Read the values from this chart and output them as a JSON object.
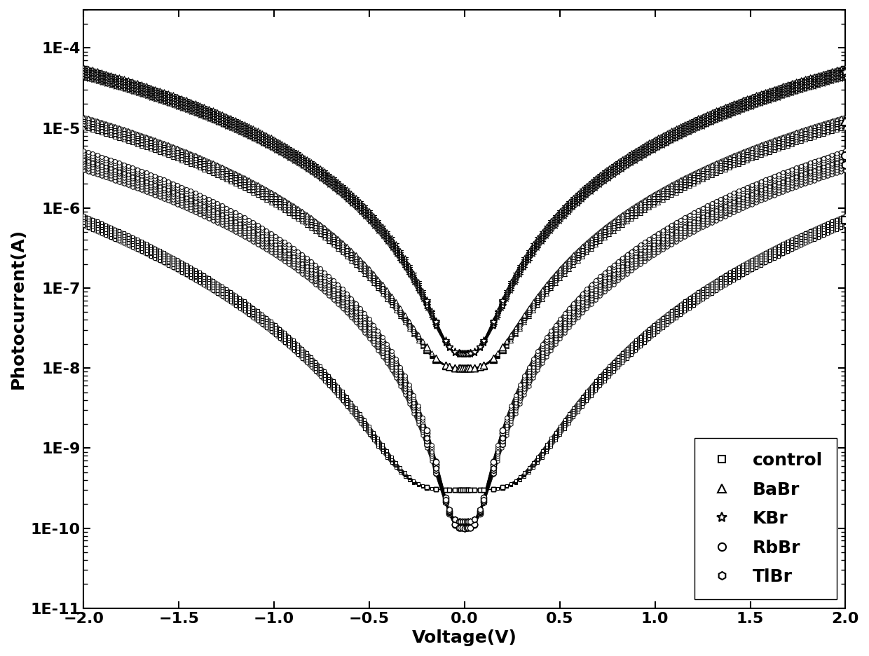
{
  "xlabel": "Voltage(V)",
  "ylabel": "Photocurrent(A)",
  "xlim": [
    -2.0,
    2.0
  ],
  "ylim": [
    1e-11,
    0.0003
  ],
  "background_color": "#ffffff",
  "series": [
    {
      "name": "control",
      "marker": "s",
      "markersize": 5,
      "I_at_2V": 7e-07,
      "I_floor": 3e-10,
      "n": 4.5
    },
    {
      "name": "BaBr",
      "marker": "^",
      "markersize": 7,
      "I_at_2V": 1.2e-05,
      "I_floor": 1e-08,
      "n": 3.2
    },
    {
      "name": "KBr",
      "marker": "*",
      "markersize": 8,
      "I_at_2V": 5e-05,
      "I_floor": 1.5e-08,
      "n": 3.0
    },
    {
      "name": "RbBr",
      "marker": "o",
      "markersize": 6,
      "I_at_2V": 4.5e-06,
      "I_floor": 1e-10,
      "n": 3.5
    },
    {
      "name": "TlBr",
      "marker": "h",
      "markersize": 6,
      "I_at_2V": 3.5e-06,
      "I_floor": 1.2e-10,
      "n": 3.5
    }
  ],
  "legend_loc": "lower right",
  "font_size": 18,
  "tick_font_size": 16,
  "line_color": "#000000"
}
